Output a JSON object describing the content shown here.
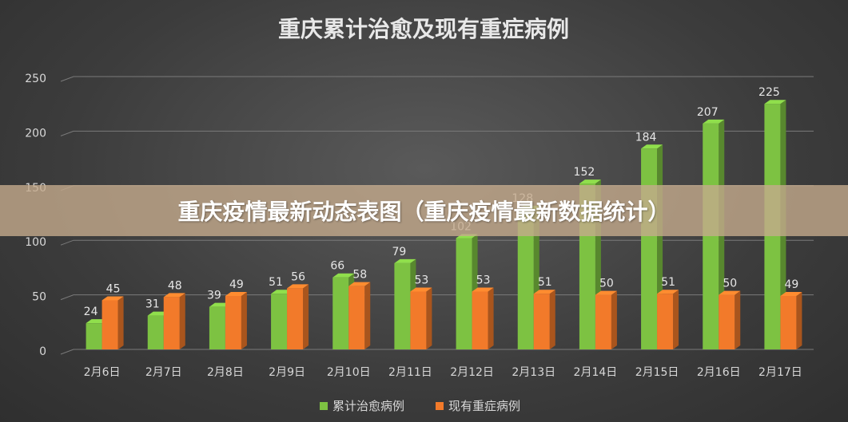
{
  "overlay": {
    "text": "重庆疫情最新动态表图（重庆疫情最新数据统计）"
  },
  "chart_data": {
    "type": "bar",
    "title": "重庆累计治愈及现有重症病例",
    "categories": [
      "2月6日",
      "2月7日",
      "2月8日",
      "2月9日",
      "2月10日",
      "2月11日",
      "2月12日",
      "2月13日",
      "2月14日",
      "2月15日",
      "2月16日",
      "2月17日"
    ],
    "series": [
      {
        "name": "累计治愈病例",
        "color": "#7dc242",
        "values": [
          24,
          31,
          39,
          51,
          66,
          79,
          102,
          128,
          152,
          184,
          207,
          225
        ]
      },
      {
        "name": "现有重症病例",
        "color": "#f27a2a",
        "values": [
          45,
          48,
          49,
          56,
          58,
          53,
          53,
          51,
          50,
          51,
          50,
          49
        ]
      }
    ],
    "yticks": [
      0,
      50,
      100,
      150,
      200,
      250
    ],
    "ylim": [
      0,
      250
    ],
    "grid": true,
    "legend": "bottom"
  }
}
